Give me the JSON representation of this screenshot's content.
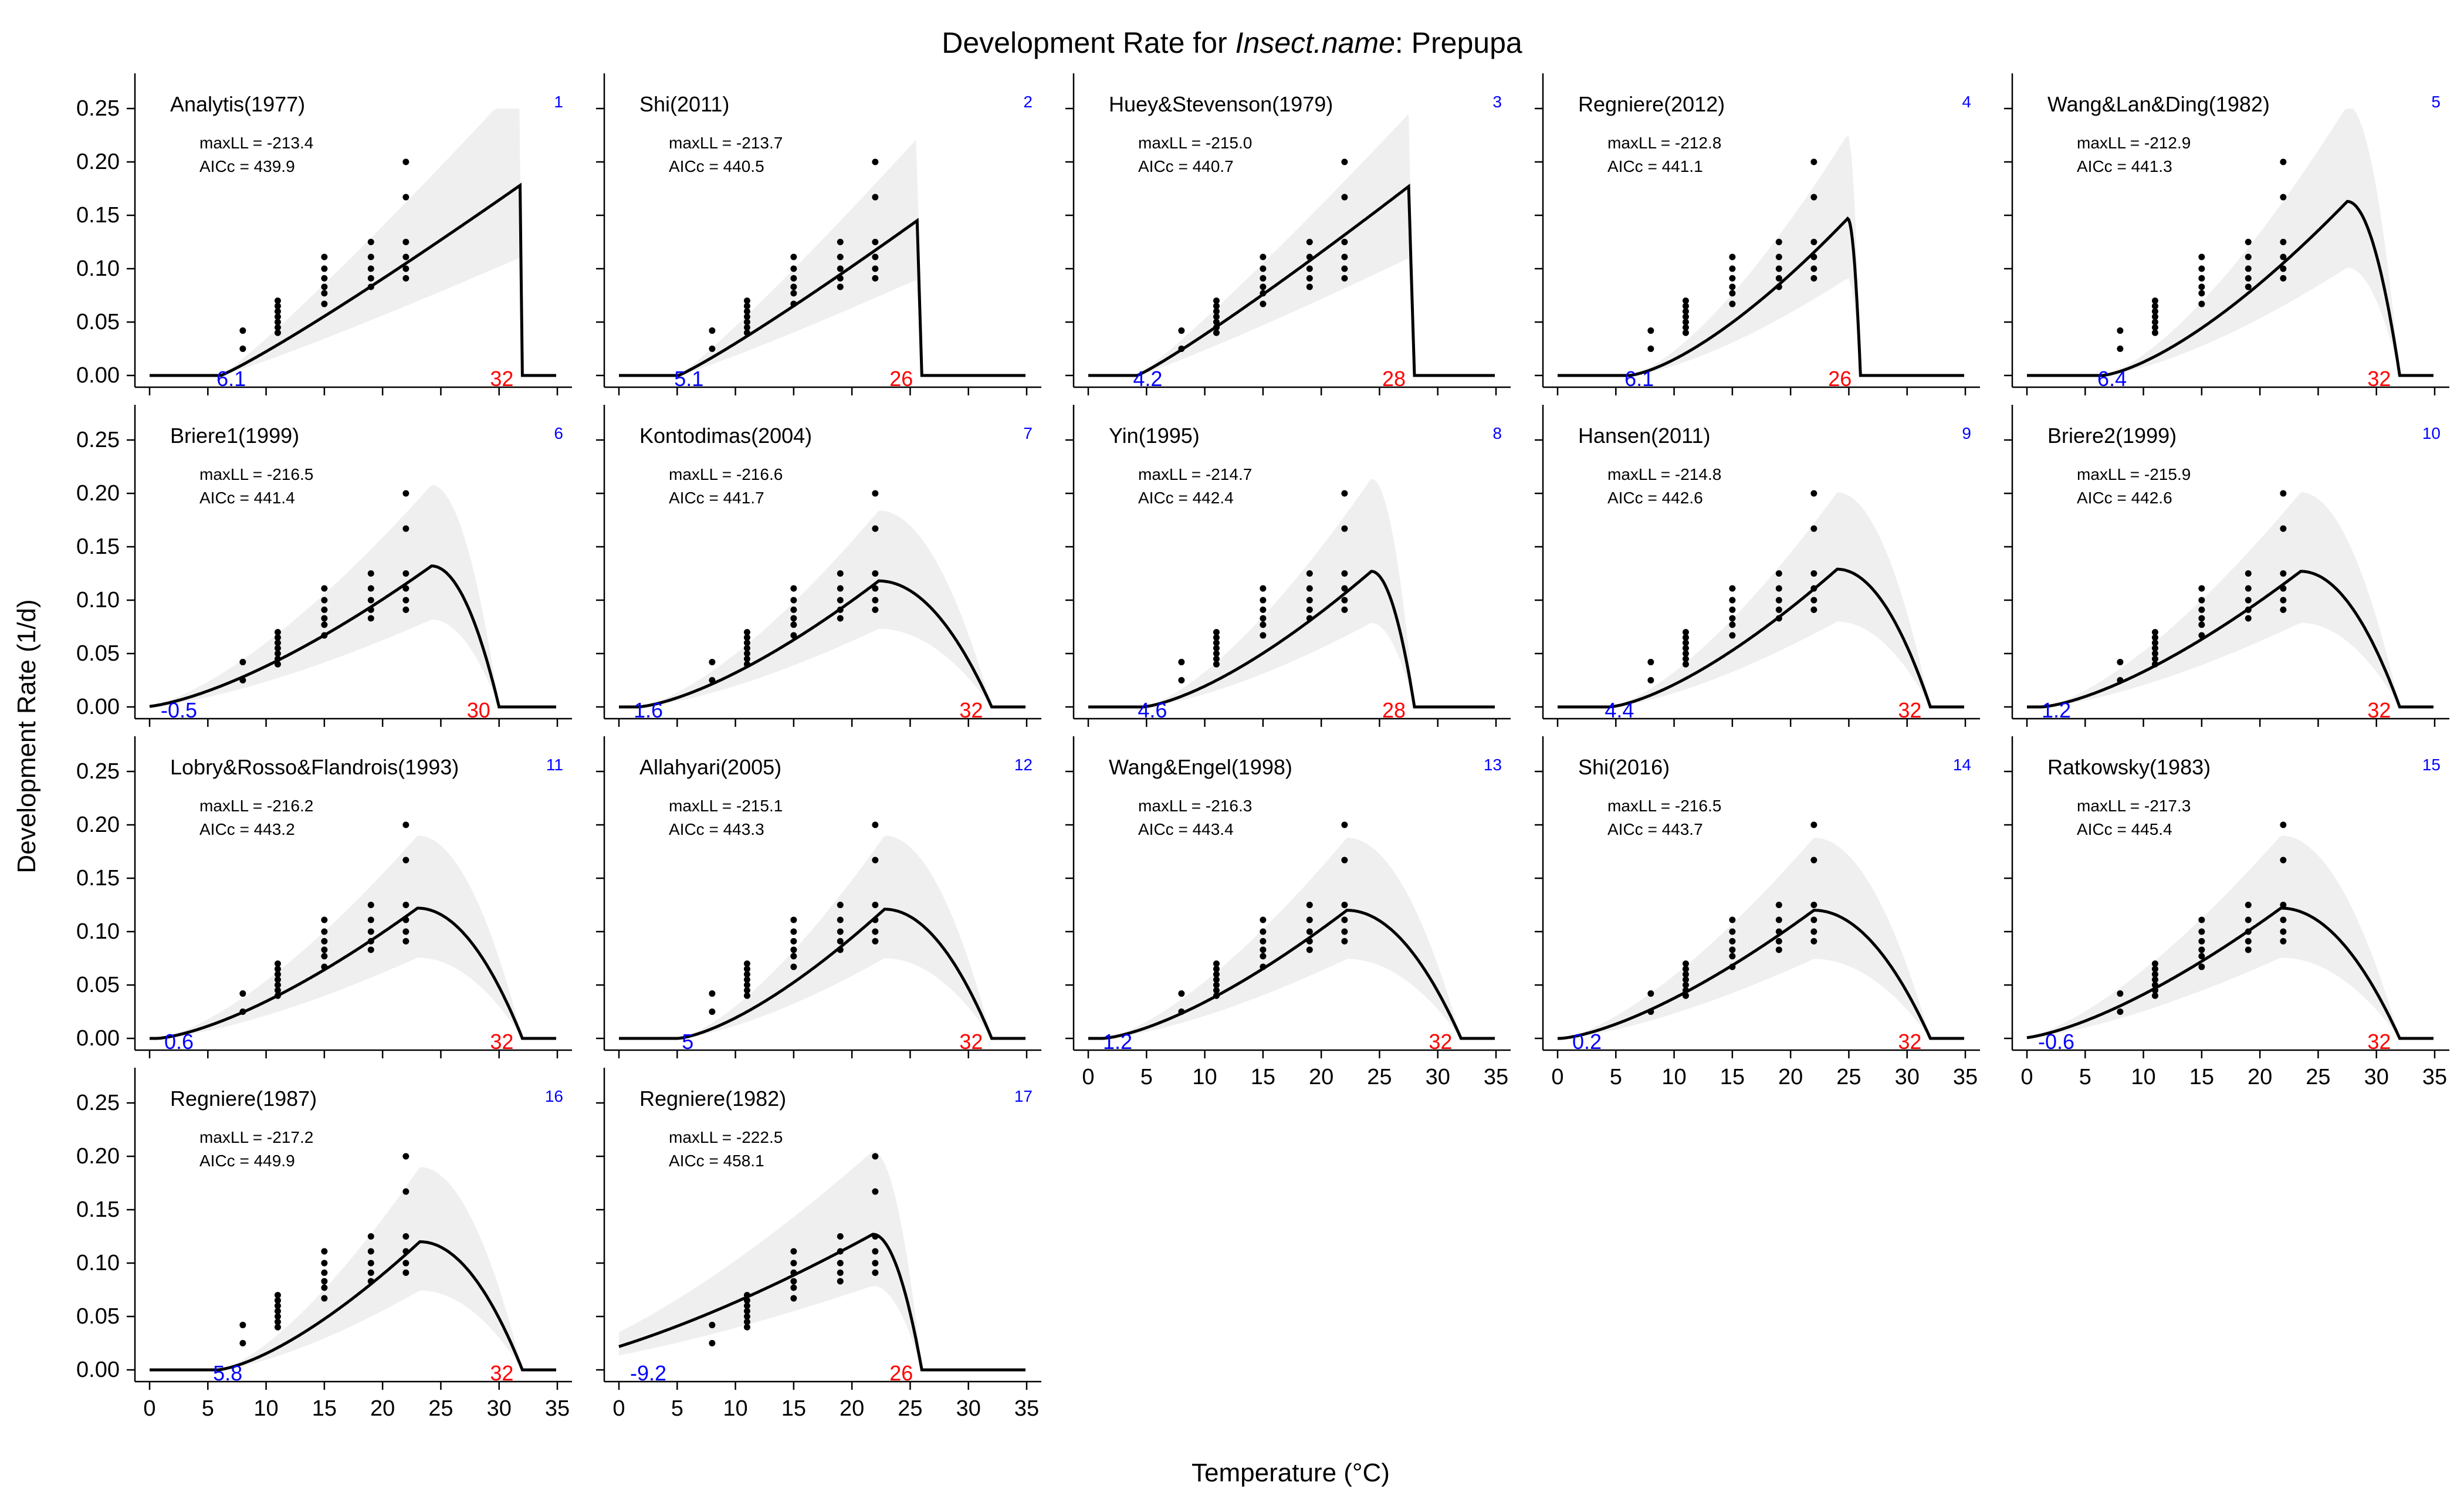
{
  "figure": {
    "title_pre": "Development Rate for ",
    "title_italic": "Insect.name",
    "title_post": ": Prepupa",
    "xlabel": "Temperature (°C)",
    "ylabel": "Development Rate (1/d)"
  },
  "colors": {
    "curve": "#000000",
    "band": "#efefef",
    "points": "#000000",
    "index": "#0000ff",
    "tmin": "#0000ff",
    "tmax": "#ff0000"
  },
  "chart_data": {
    "type": "line",
    "xlim": [
      0,
      35
    ],
    "ylim": [
      0,
      0.25
    ],
    "xticks": [
      0,
      5,
      10,
      15,
      20,
      25,
      30,
      35
    ],
    "yticks": [
      "0.00",
      "0.05",
      "0.10",
      "0.15",
      "0.20",
      "0.25"
    ],
    "observations": [
      {
        "x": 8,
        "y": [
          0.025,
          0.042
        ]
      },
      {
        "x": 11,
        "y": [
          0.04,
          0.045,
          0.05,
          0.055,
          0.06,
          0.065,
          0.07
        ]
      },
      {
        "x": 15,
        "y": [
          0.067,
          0.077,
          0.083,
          0.091,
          0.1,
          0.111
        ]
      },
      {
        "x": 19,
        "y": [
          0.083,
          0.091,
          0.1,
          0.111,
          0.125
        ]
      },
      {
        "x": 22,
        "y": [
          0.091,
          0.1,
          0.111,
          0.125,
          0.167,
          0.2
        ]
      }
    ],
    "panels": [
      {
        "index": "1",
        "model": "Analytis(1977)",
        "maxLL": "maxLL = -213.4",
        "AICc": "AICc = 439.9",
        "tmin": "6.1",
        "tmax": "32",
        "tmin_v": 6.1,
        "tmax_v": 32,
        "peak_t": 31.8,
        "peak_r": 0.178,
        "shape": "linear",
        "band_peak": 0.275
      },
      {
        "index": "2",
        "model": "Shi(2011)",
        "maxLL": "maxLL = -213.7",
        "AICc": "AICc = 440.5",
        "tmin": "5.1",
        "tmax": "26",
        "tmin_v": 5.1,
        "tmax_v": 26,
        "peak_t": 25.6,
        "peak_r": 0.145,
        "shape": "linear",
        "band_peak": 0.222
      },
      {
        "index": "3",
        "model": "Huey&Stevenson(1979)",
        "maxLL": "maxLL = -215.0",
        "AICc": "AICc = 440.7",
        "tmin": "4.2",
        "tmax": "28",
        "tmin_v": 4.2,
        "tmax_v": 28,
        "peak_t": 27.5,
        "peak_r": 0.177,
        "shape": "linear",
        "band_peak": 0.245
      },
      {
        "index": "4",
        "model": "Regniere(2012)",
        "maxLL": "maxLL = -212.8",
        "AICc": "AICc = 441.1",
        "tmin": "6.1",
        "tmax": "26",
        "tmin_v": 6.1,
        "tmax_v": 26,
        "peak_t": 24.9,
        "peak_r": 0.147,
        "shape": "round",
        "band_peak": 0.226
      },
      {
        "index": "5",
        "model": "Wang&Lan&Ding(1982)",
        "maxLL": "maxLL = -212.9",
        "AICc": "AICc = 441.3",
        "tmin": "6.4",
        "tmax": "32",
        "tmin_v": 6.4,
        "tmax_v": 32,
        "peak_t": 27.5,
        "peak_r": 0.163,
        "shape": "round",
        "band_peak": 0.253
      },
      {
        "index": "6",
        "model": "Briere1(1999)",
        "maxLL": "maxLL = -216.5",
        "AICc": "AICc = 441.4",
        "tmin": "-0.5",
        "tmax": "30",
        "tmin_v": -0.5,
        "tmax_v": 30,
        "peak_t": 24.2,
        "peak_r": 0.132,
        "shape": "round",
        "band_peak": 0.208
      },
      {
        "index": "7",
        "model": "Kontodimas(2004)",
        "maxLL": "maxLL = -216.6",
        "AICc": "AICc = 441.7",
        "tmin": "1.6",
        "tmax": "32",
        "tmin_v": 1.6,
        "tmax_v": 32,
        "peak_t": 22.3,
        "peak_r": 0.118,
        "shape": "round",
        "band_peak": 0.184
      },
      {
        "index": "8",
        "model": "Yin(1995)",
        "maxLL": "maxLL = -214.7",
        "AICc": "AICc = 442.4",
        "tmin": "4.6",
        "tmax": "28",
        "tmin_v": 4.6,
        "tmax_v": 28,
        "peak_t": 24.3,
        "peak_r": 0.127,
        "shape": "round",
        "band_peak": 0.214
      },
      {
        "index": "9",
        "model": "Hansen(2011)",
        "maxLL": "maxLL = -214.8",
        "AICc": "AICc = 442.6",
        "tmin": "4.4",
        "tmax": "32",
        "tmin_v": 4.4,
        "tmax_v": 32,
        "peak_t": 24.0,
        "peak_r": 0.129,
        "shape": "round",
        "band_peak": 0.201
      },
      {
        "index": "10",
        "model": "Briere2(1999)",
        "maxLL": "maxLL = -215.9",
        "AICc": "AICc = 442.6",
        "tmin": "1.2",
        "tmax": "32",
        "tmin_v": 1.2,
        "tmax_v": 32,
        "peak_t": 23.5,
        "peak_r": 0.127,
        "shape": "round",
        "band_peak": 0.201
      },
      {
        "index": "11",
        "model": "Lobry&Rosso&Flandrois(1993)",
        "maxLL": "maxLL = -216.2",
        "AICc": "AICc = 443.2",
        "tmin": "0.6",
        "tmax": "32",
        "tmin_v": 0.6,
        "tmax_v": 32,
        "peak_t": 23.0,
        "peak_r": 0.122,
        "shape": "round",
        "band_peak": 0.19
      },
      {
        "index": "12",
        "model": "Allahyari(2005)",
        "maxLL": "maxLL = -215.1",
        "AICc": "AICc = 443.3",
        "tmin": "5",
        "tmax": "32",
        "tmin_v": 5,
        "tmax_v": 32,
        "peak_t": 22.8,
        "peak_r": 0.121,
        "shape": "round",
        "band_peak": 0.19
      },
      {
        "index": "13",
        "model": "Wang&Engel(1998)",
        "maxLL": "maxLL = -216.3",
        "AICc": "AICc = 443.4",
        "tmin": "1.2",
        "tmax": "32",
        "tmin_v": 1.2,
        "tmax_v": 32,
        "peak_t": 22.2,
        "peak_r": 0.12,
        "shape": "round",
        "band_peak": 0.188
      },
      {
        "index": "14",
        "model": "Shi(2016)",
        "maxLL": "maxLL = -216.5",
        "AICc": "AICc = 443.7",
        "tmin": "0.2",
        "tmax": "32",
        "tmin_v": 0.2,
        "tmax_v": 32,
        "peak_t": 22.0,
        "peak_r": 0.12,
        "shape": "round",
        "band_peak": 0.188
      },
      {
        "index": "15",
        "model": "Ratkowsky(1983)",
        "maxLL": "maxLL = -217.3",
        "AICc": "AICc = 445.4",
        "tmin": "-0.6",
        "tmax": "32",
        "tmin_v": -0.6,
        "tmax_v": 32,
        "peak_t": 21.8,
        "peak_r": 0.122,
        "shape": "round",
        "band_peak": 0.19
      },
      {
        "index": "16",
        "model": "Regniere(1987)",
        "maxLL": "maxLL = -217.2",
        "AICc": "AICc = 449.9",
        "tmin": "5.8",
        "tmax": "32",
        "tmin_v": 5.8,
        "tmax_v": 32,
        "peak_t": 23.2,
        "peak_r": 0.12,
        "shape": "round",
        "band_peak": 0.19
      },
      {
        "index": "17",
        "model": "Regniere(1982)",
        "maxLL": "maxLL = -222.5",
        "AICc": "AICc = 458.1",
        "tmin": "-9.2",
        "tmax": "26",
        "tmin_v": -9.2,
        "tmax_v": 26,
        "peak_t": 21.8,
        "peak_r": 0.127,
        "shape": "round",
        "band_peak": 0.205
      }
    ]
  }
}
